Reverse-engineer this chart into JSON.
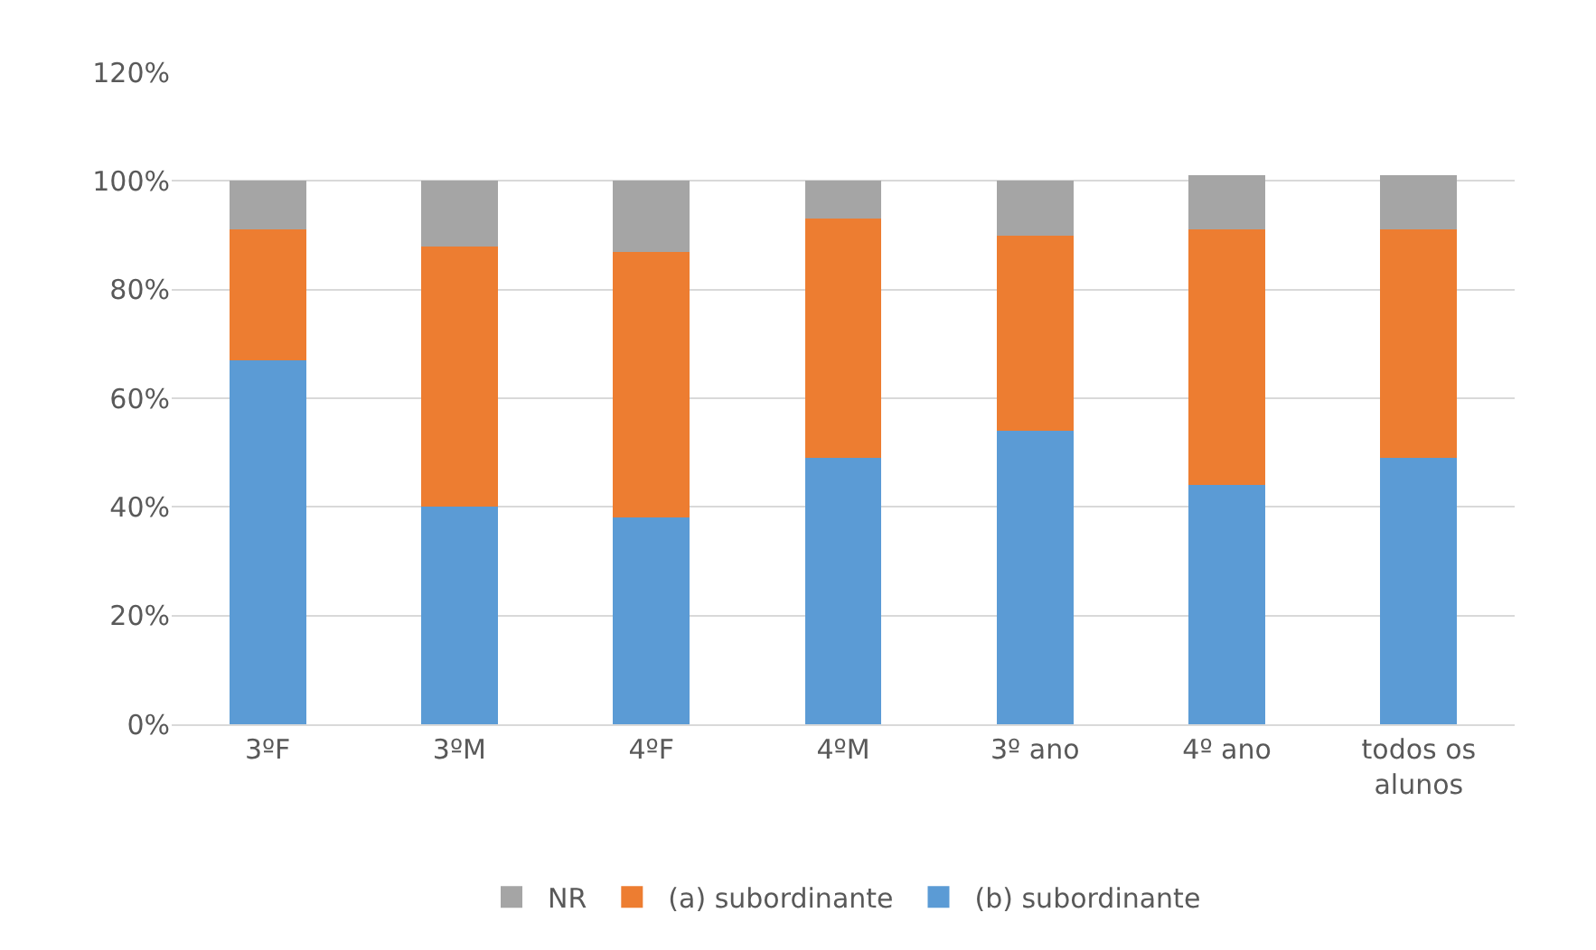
{
  "chart_data": {
    "type": "bar",
    "stacked": true,
    "categories": [
      "3ºF",
      "3ºM",
      "4ºF",
      "4ºM",
      "3º ano",
      "4º ano",
      "todos os alunos"
    ],
    "series": [
      {
        "name": "(b) subordinante",
        "color": "#5b9bd5",
        "values": [
          67,
          40,
          38,
          49,
          54,
          44,
          49
        ]
      },
      {
        "name": "(a) subordinante",
        "color": "#ed7d31",
        "values": [
          24,
          48,
          49,
          44,
          36,
          47,
          42
        ]
      },
      {
        "name": "NR",
        "color": "#a5a5a5",
        "values": [
          9,
          12,
          13,
          7,
          10,
          10,
          10
        ]
      }
    ],
    "ylim": [
      0,
      120
    ],
    "yticks": [
      {
        "value": 0,
        "label": "0%"
      },
      {
        "value": 20,
        "label": "20%"
      },
      {
        "value": 40,
        "label": "40%"
      },
      {
        "value": 60,
        "label": "60%"
      },
      {
        "value": 80,
        "label": "80%"
      },
      {
        "value": 100,
        "label": "100%"
      },
      {
        "value": 120,
        "label": "120%"
      }
    ],
    "grid": "y",
    "legend": "bottom"
  }
}
